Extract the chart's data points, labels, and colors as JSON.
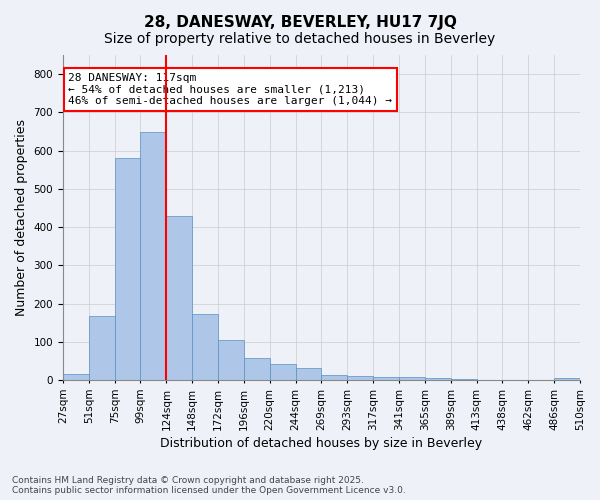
{
  "title": "28, DANESWAY, BEVERLEY, HU17 7JQ",
  "subtitle": "Size of property relative to detached houses in Beverley",
  "xlabel": "Distribution of detached houses by size in Beverley",
  "ylabel": "Number of detached properties",
  "bar_labels": [
    "27sqm",
    "51sqm",
    "75sqm",
    "99sqm",
    "124sqm",
    "148sqm",
    "172sqm",
    "196sqm",
    "220sqm",
    "244sqm",
    "269sqm",
    "293sqm",
    "317sqm",
    "341sqm",
    "365sqm",
    "389sqm",
    "413sqm",
    "438sqm",
    "462sqm",
    "486sqm",
    "510sqm"
  ],
  "bar_values": [
    17,
    168,
    582,
    648,
    430,
    173,
    105,
    57,
    42,
    31,
    14,
    10,
    8,
    8,
    5,
    3,
    2,
    1,
    0,
    5
  ],
  "bar_color": "#aec6e8",
  "bar_edge_color": "#5a8fc2",
  "grid_color": "#cccccc",
  "bg_color": "#eef2f8",
  "vline_x_index": 4,
  "vline_color": "red",
  "annotation_text": "28 DANESWAY: 117sqm\n← 54% of detached houses are smaller (1,213)\n46% of semi-detached houses are larger (1,044) →",
  "annotation_box_color": "white",
  "annotation_box_edge_color": "red",
  "ylim": [
    0,
    850
  ],
  "yticks": [
    0,
    100,
    200,
    300,
    400,
    500,
    600,
    700,
    800
  ],
  "footnote": "Contains HM Land Registry data © Crown copyright and database right 2025.\nContains public sector information licensed under the Open Government Licence v3.0.",
  "title_fontsize": 11,
  "subtitle_fontsize": 10,
  "axis_label_fontsize": 9,
  "tick_fontsize": 7.5,
  "annotation_fontsize": 8,
  "footnote_fontsize": 6.5
}
